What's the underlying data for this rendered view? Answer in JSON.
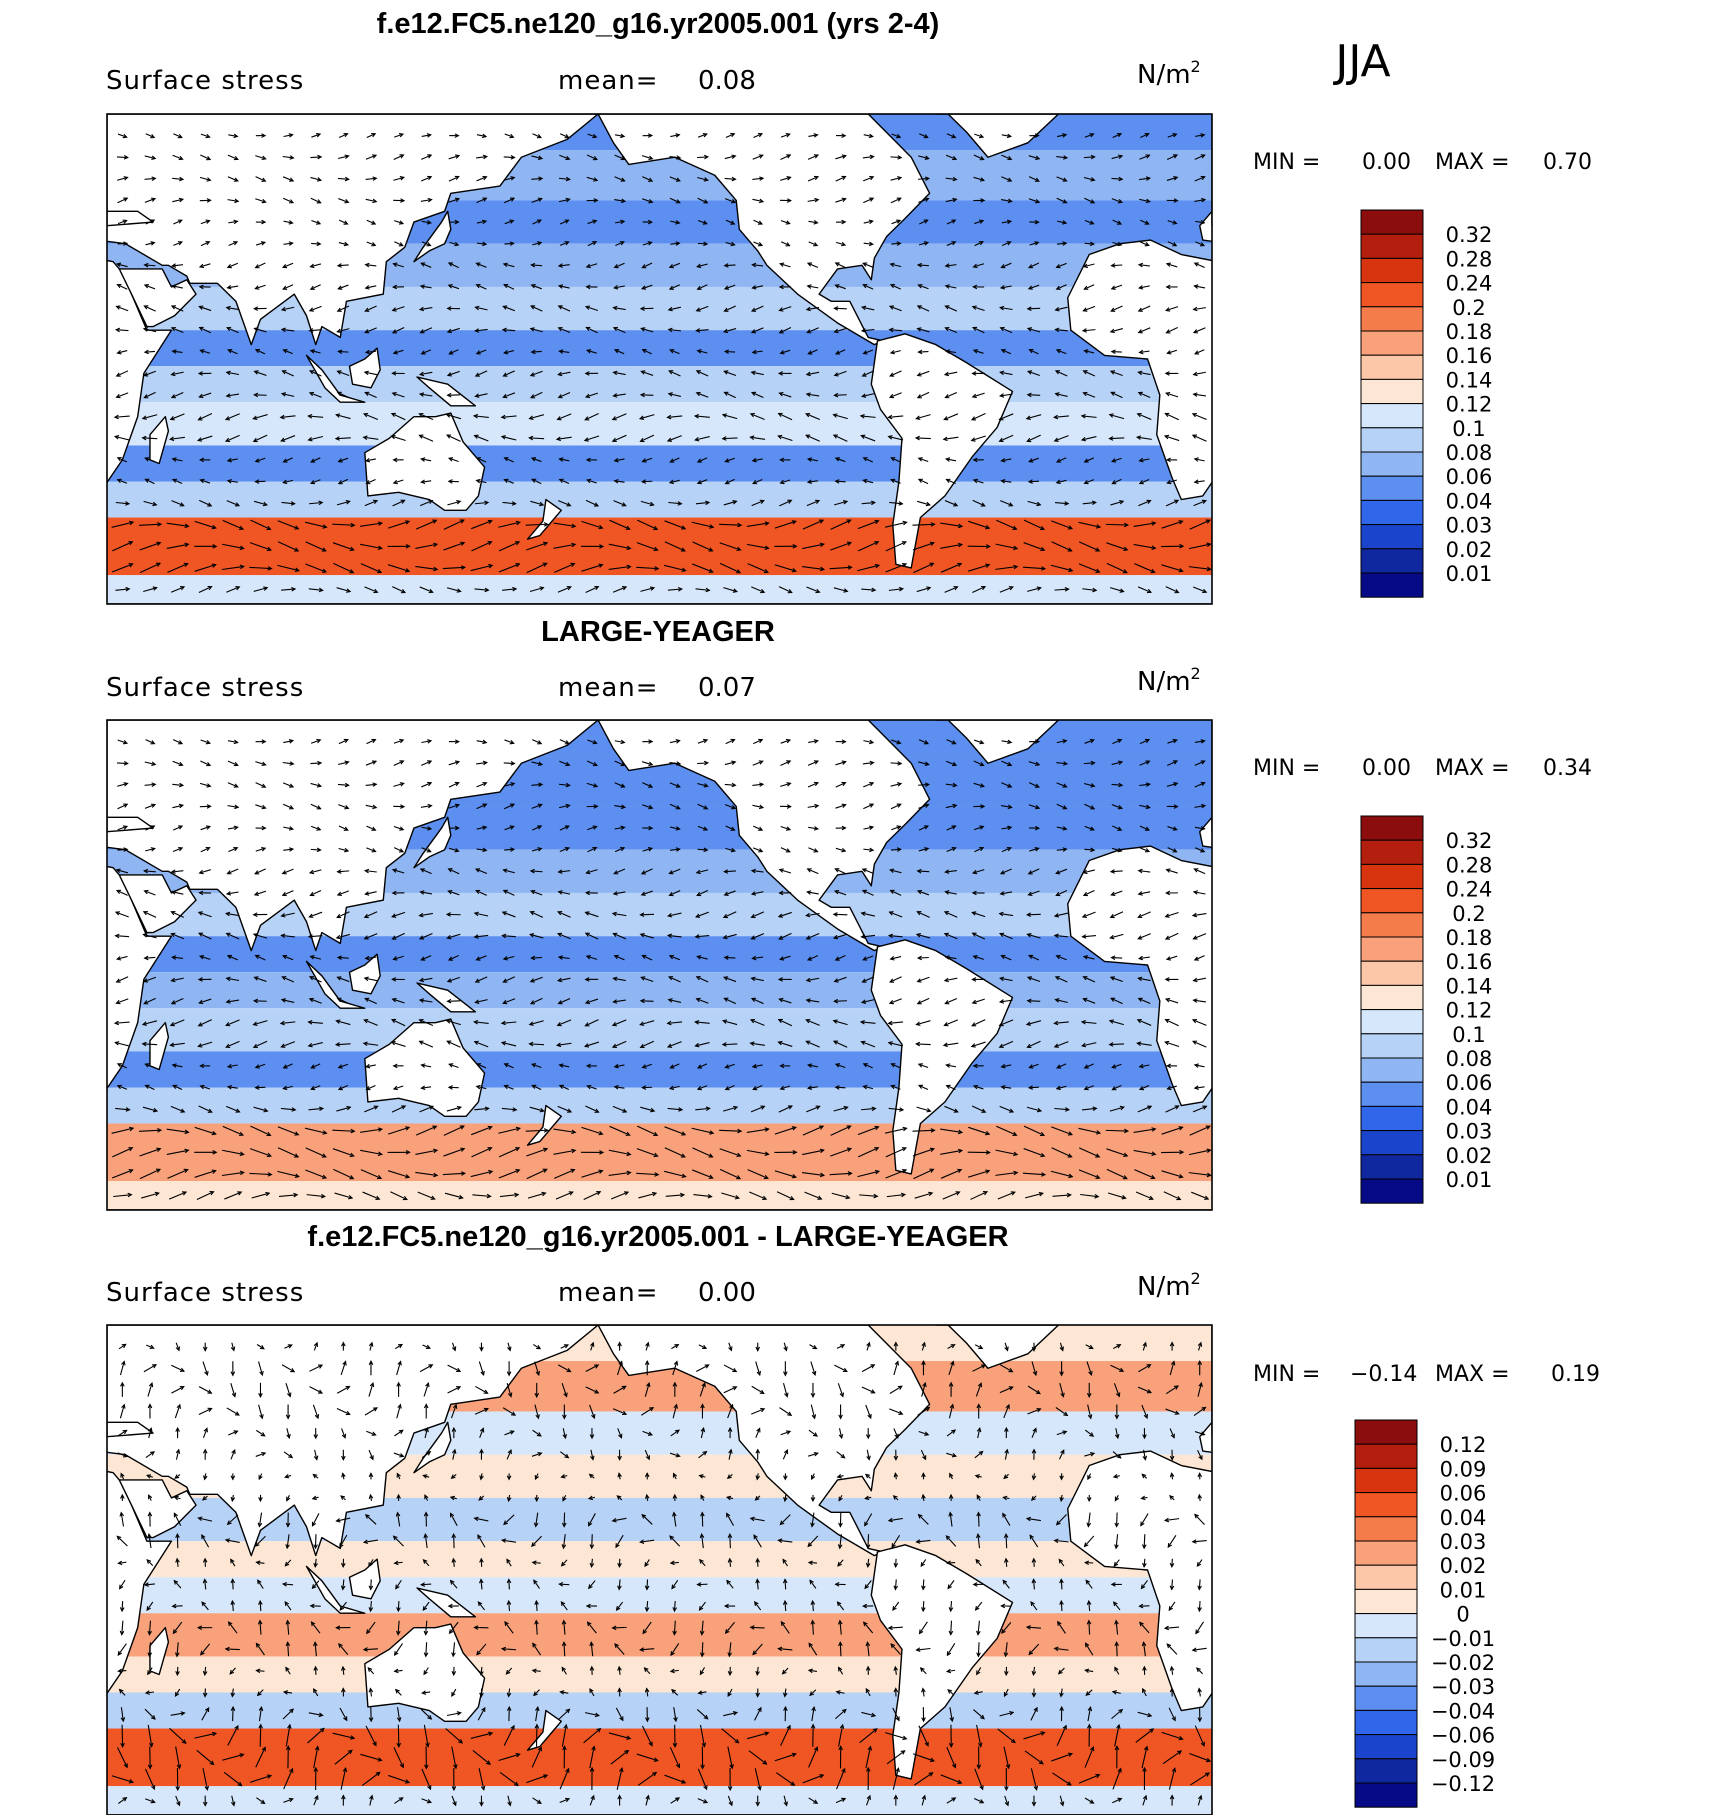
{
  "season_label": "JJA",
  "colors": {
    "land": "#ffffff",
    "coast": "#000000",
    "deep_blue": "#00128a",
    "mid_blue": "#1e4fe0",
    "light_blue": "#cfe3ff",
    "light_orange": "#fcd8be",
    "orange": "#f0703a",
    "dark_red": "#8c0a0a"
  },
  "chart_data": [
    {
      "type": "heatmap",
      "panel_title": "f.e12.FC5.ne120_g16.yr2005.001 (yrs 2-4)",
      "field_label": "Surface stress",
      "mean_label": "mean=",
      "mean_value": "0.08",
      "units_base": "N/m",
      "units_exp": "2",
      "stats": {
        "min_label": "MIN =",
        "min": "0.00",
        "max_label": "MAX =",
        "max": "0.70"
      },
      "colorbar": {
        "levels": [
          "0.32",
          "0.28",
          "0.24",
          "0.2",
          "0.18",
          "0.16",
          "0.14",
          "0.12",
          "0.1",
          "0.08",
          "0.06",
          "0.04",
          "0.03",
          "0.02",
          "0.01"
        ],
        "colors": [
          "#8b0d0d",
          "#b31e0e",
          "#d7340f",
          "#ef5624",
          "#f47c4a",
          "#f8a17a",
          "#fcc7a9",
          "#fde6d3",
          "#d6e7fb",
          "#b7d2f7",
          "#8fb6f2",
          "#5c8ff0",
          "#2f66ea",
          "#1b44cc",
          "#10289f",
          "#060a86"
        ]
      },
      "bands": [
        {
          "lat_from": 72,
          "lat_to": 62,
          "value": 0.04
        },
        {
          "lat_from": 62,
          "lat_to": 48,
          "value": 0.06
        },
        {
          "lat_from": 48,
          "lat_to": 36,
          "value": 0.04
        },
        {
          "lat_from": 36,
          "lat_to": 24,
          "value": 0.06
        },
        {
          "lat_from": 24,
          "lat_to": 12,
          "value": 0.08
        },
        {
          "lat_from": 12,
          "lat_to": 2,
          "value": 0.05
        },
        {
          "lat_from": 2,
          "lat_to": -8,
          "value": 0.08
        },
        {
          "lat_from": -8,
          "lat_to": -20,
          "value": 0.11
        },
        {
          "lat_from": -20,
          "lat_to": -30,
          "value": 0.05
        },
        {
          "lat_from": -30,
          "lat_to": -40,
          "value": 0.09
        },
        {
          "lat_from": -40,
          "lat_to": -56,
          "value": 0.2
        },
        {
          "lat_from": -56,
          "lat_to": -64,
          "value": 0.1
        }
      ]
    },
    {
      "type": "heatmap",
      "panel_title": "LARGE-YEAGER",
      "field_label": "Surface stress",
      "mean_label": "mean=",
      "mean_value": "0.07",
      "units_base": "N/m",
      "units_exp": "2",
      "stats": {
        "min_label": "MIN =",
        "min": "0.00",
        "max_label": "MAX =",
        "max": "0.34"
      },
      "colorbar": {
        "levels": [
          "0.32",
          "0.28",
          "0.24",
          "0.2",
          "0.18",
          "0.16",
          "0.14",
          "0.12",
          "0.1",
          "0.08",
          "0.06",
          "0.04",
          "0.03",
          "0.02",
          "0.01"
        ],
        "colors": [
          "#8b0d0d",
          "#b31e0e",
          "#d7340f",
          "#ef5624",
          "#f47c4a",
          "#f8a17a",
          "#fcc7a9",
          "#fde6d3",
          "#d6e7fb",
          "#b7d2f7",
          "#8fb6f2",
          "#5c8ff0",
          "#2f66ea",
          "#1b44cc",
          "#10289f",
          "#060a86"
        ]
      },
      "bands": [
        {
          "lat_from": 72,
          "lat_to": 62,
          "value": 0.04
        },
        {
          "lat_from": 62,
          "lat_to": 48,
          "value": 0.05
        },
        {
          "lat_from": 48,
          "lat_to": 36,
          "value": 0.04
        },
        {
          "lat_from": 36,
          "lat_to": 24,
          "value": 0.06
        },
        {
          "lat_from": 24,
          "lat_to": 12,
          "value": 0.08
        },
        {
          "lat_from": 12,
          "lat_to": 2,
          "value": 0.05
        },
        {
          "lat_from": 2,
          "lat_to": -8,
          "value": 0.07
        },
        {
          "lat_from": -8,
          "lat_to": -20,
          "value": 0.09
        },
        {
          "lat_from": -20,
          "lat_to": -30,
          "value": 0.04
        },
        {
          "lat_from": -30,
          "lat_to": -40,
          "value": 0.09
        },
        {
          "lat_from": -40,
          "lat_to": -56,
          "value": 0.17
        },
        {
          "lat_from": -56,
          "lat_to": -64,
          "value": 0.13
        }
      ]
    },
    {
      "type": "heatmap",
      "panel_title": "f.e12.FC5.ne120_g16.yr2005.001 - LARGE-YEAGER",
      "field_label": "Surface stress",
      "mean_label": "mean=",
      "mean_value": "0.00",
      "units_base": "N/m",
      "units_exp": "2",
      "stats": {
        "min_label": "MIN =",
        "min": "−0.14",
        "max_label": "MAX =",
        "max": "0.19"
      },
      "colorbar": {
        "levels": [
          "0.12",
          "0.09",
          "0.06",
          "0.04",
          "0.03",
          "0.02",
          "0.01",
          "0",
          "−0.01",
          "−0.02",
          "−0.03",
          "−0.04",
          "−0.06",
          "−0.09",
          "−0.12"
        ],
        "colors": [
          "#8b0d0d",
          "#b31e0e",
          "#d7340f",
          "#ef5624",
          "#f47c4a",
          "#f8a17a",
          "#fcc7a9",
          "#fde6d3",
          "#d6e7fb",
          "#b7d2f7",
          "#8fb6f2",
          "#5c8ff0",
          "#2f66ea",
          "#1b44cc",
          "#10289f",
          "#060a86"
        ]
      },
      "bands": [
        {
          "lat_from": 72,
          "lat_to": 62,
          "value": 0.005
        },
        {
          "lat_from": 62,
          "lat_to": 48,
          "value": 0.02
        },
        {
          "lat_from": 48,
          "lat_to": 36,
          "value": -0.01
        },
        {
          "lat_from": 36,
          "lat_to": 24,
          "value": 0.0
        },
        {
          "lat_from": 24,
          "lat_to": 12,
          "value": -0.02
        },
        {
          "lat_from": 12,
          "lat_to": 2,
          "value": 0.005
        },
        {
          "lat_from": 2,
          "lat_to": -8,
          "value": -0.01
        },
        {
          "lat_from": -8,
          "lat_to": -20,
          "value": 0.02
        },
        {
          "lat_from": -20,
          "lat_to": -30,
          "value": 0.005
        },
        {
          "lat_from": -30,
          "lat_to": -40,
          "value": -0.02
        },
        {
          "lat_from": -40,
          "lat_to": -56,
          "value": 0.04
        },
        {
          "lat_from": -56,
          "lat_to": -64,
          "value": -0.01
        }
      ]
    }
  ]
}
